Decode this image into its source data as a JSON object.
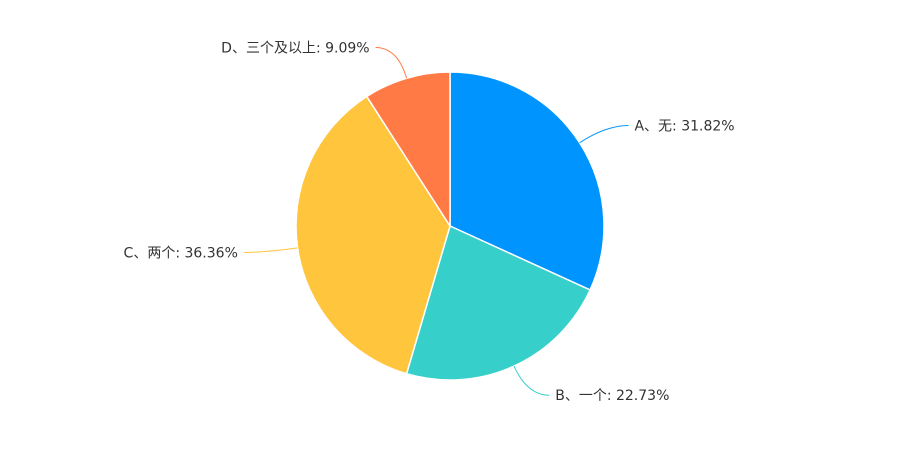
{
  "chart_data": {
    "type": "pie",
    "title": "",
    "start": "top",
    "direction": "clockwise",
    "legend": "none",
    "slices": [
      {
        "label": "A、无: 31.82%",
        "value": 31.82,
        "color": "#0094FF"
      },
      {
        "label": "B、一个: 22.73%",
        "value": 22.73,
        "color": "#36CFC9"
      },
      {
        "label": "C、两个: 36.36%",
        "value": 36.36,
        "color": "#FFC53D"
      },
      {
        "label": "D、三个及以上: 9.09%",
        "value": 9.09,
        "color": "#FF7A45"
      }
    ]
  }
}
